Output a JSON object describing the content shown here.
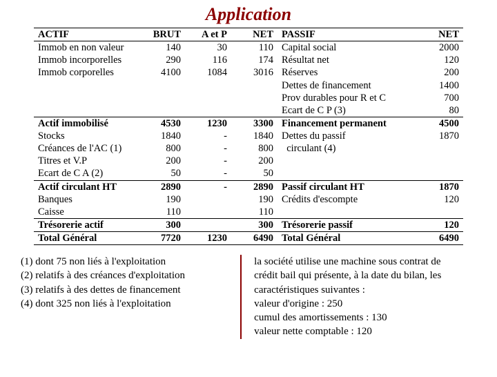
{
  "title": "Application",
  "headers": {
    "actif": "ACTIF",
    "brut": "BRUT",
    "aetp": "A et P",
    "net": "NET",
    "passif": "PASSIF",
    "net2": "NET"
  },
  "section1": {
    "actif_rows": [
      {
        "label": "Immob en non valeur",
        "brut": "140",
        "aetp": "30",
        "net": "110"
      },
      {
        "label": "Immob incorporelles",
        "brut": "290",
        "aetp": "116",
        "net": "174"
      },
      {
        "label": "Immob corporelles",
        "brut": "4100",
        "aetp": "1084",
        "net": "3016"
      }
    ],
    "passif_rows": [
      {
        "label": "Capital social",
        "net": "2000"
      },
      {
        "label": "Résultat net",
        "net": "120"
      },
      {
        "label": "Réserves",
        "net": "200"
      },
      {
        "label": "Dettes de financement",
        "net": "1400"
      },
      {
        "label": "Prov durables pour R et C",
        "net": "700"
      },
      {
        "label": "Ecart de C P (3)",
        "net": "80"
      }
    ]
  },
  "subtotal1": {
    "actif": {
      "label": "Actif immobilisé",
      "brut": "4530",
      "aetp": "1230",
      "net": "3300"
    },
    "passif": {
      "label": "Financement permanent",
      "net": "4500"
    }
  },
  "section2": {
    "actif_rows": [
      {
        "label": "Stocks",
        "brut": "1840",
        "aetp": "-",
        "net": "1840"
      },
      {
        "label": "Créances de l'AC (1)",
        "brut": "800",
        "aetp": "-",
        "net": "800"
      },
      {
        "label": "Titres et V.P",
        "brut": "200",
        "aetp": "-",
        "net": "200"
      },
      {
        "label": "Ecart de C A (2)",
        "brut": "50",
        "aetp": "-",
        "net": "50"
      }
    ],
    "passif_rows": [
      {
        "label": "Dettes du passif",
        "net": "1870"
      },
      {
        "label": "  circulant (4)",
        "net": ""
      }
    ]
  },
  "subtotal2": {
    "actif": {
      "label": "Actif circulant HT",
      "brut": "2890",
      "aetp": "-",
      "net": "2890"
    },
    "passif": {
      "label": "Passif circulant HT",
      "net": "1870"
    }
  },
  "section3": {
    "actif_rows": [
      {
        "label": "Banques",
        "brut": "190",
        "aetp": "",
        "net": "190"
      },
      {
        "label": "Caisse",
        "brut": "110",
        "aetp": "",
        "net": "110"
      }
    ],
    "passif_rows": [
      {
        "label": "Crédits d'escompte",
        "net": "120"
      }
    ]
  },
  "subtotal3": {
    "actif": {
      "label": "Trésorerie actif",
      "brut": "300",
      "aetp": "",
      "net": "300"
    },
    "passif": {
      "label": "Trésorerie passif",
      "net": "120"
    }
  },
  "total": {
    "actif": {
      "label": "Total Général",
      "brut": "7720",
      "aetp": "1230",
      "net": "6490"
    },
    "passif": {
      "label": "Total Général",
      "net": "6490"
    }
  },
  "footnotes": [
    "(1)  dont 75 non liés à l'exploitation",
    "(2) relatifs à des créances d'exploitation",
    "(3) relatifs à des dettes de financement",
    "(4) dont 325 non liés à l'exploitation"
  ],
  "rightnotes": [
    "la société utilise une machine sous contrat de",
    "crédit bail qui présente, à la date du bilan, les",
    "caractéristiques suivantes :",
    "valeur d'origine  : 250",
    "cumul des amortissements : 130",
    "valeur nette comptable      : 120"
  ],
  "style": {
    "title_color": "#8b0000",
    "rule_color": "#8b0000",
    "text_color": "#000000",
    "background": "#ffffff",
    "font_family": "Times New Roman",
    "title_fontsize": 26,
    "body_fontsize": 14.5,
    "notes_fontsize": 15
  }
}
